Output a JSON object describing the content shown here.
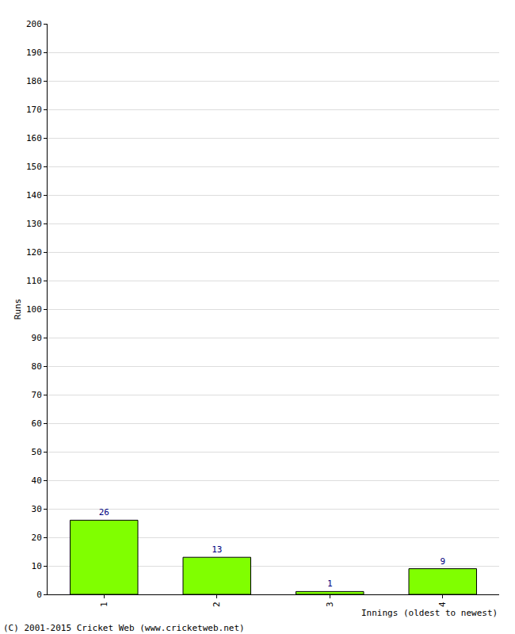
{
  "chart_data": {
    "type": "bar",
    "categories": [
      "1",
      "2",
      "3",
      "4"
    ],
    "values": [
      26,
      13,
      1,
      9
    ],
    "color": "#80ff00",
    "x_label": "Innings (oldest to newest)",
    "y_label": "Runs",
    "ylim": [
      0,
      200
    ],
    "yticks": [
      0,
      10,
      20,
      30,
      40,
      50,
      60,
      70,
      80,
      90,
      100,
      110,
      120,
      130,
      140,
      150,
      160,
      170,
      180,
      190,
      200
    ],
    "grid": true,
    "data_labels": true,
    "annotations": [
      "(C) 2001-2015 Cricket Web (www.cricketweb.net)"
    ]
  }
}
